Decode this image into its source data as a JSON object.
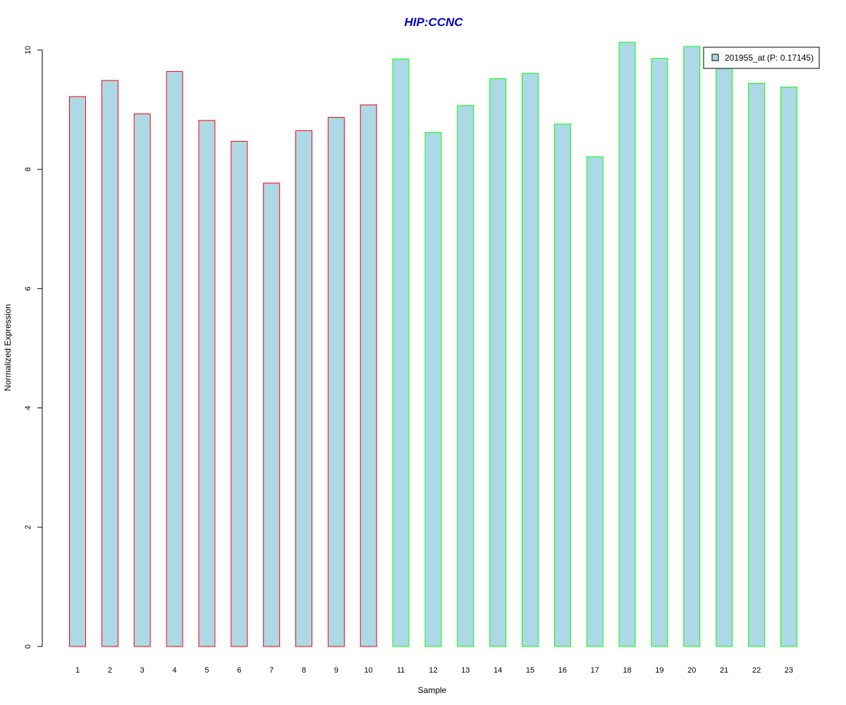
{
  "chart_data": {
    "type": "bar",
    "title": "HIP:CCNC",
    "title_color": "#0000CC",
    "xlabel": "Sample",
    "ylabel": "Normalized Expression",
    "ylim": [
      0,
      10
    ],
    "y_ticks": [
      "0",
      "2",
      "4",
      "6",
      "8",
      "10"
    ],
    "categories": [
      "1",
      "2",
      "3",
      "4",
      "5",
      "6",
      "7",
      "8",
      "9",
      "10",
      "11",
      "12",
      "13",
      "14",
      "15",
      "16",
      "17",
      "18",
      "19",
      "20",
      "21",
      "22",
      "23"
    ],
    "values": [
      9.22,
      9.49,
      8.93,
      9.64,
      8.82,
      8.47,
      7.77,
      8.65,
      8.87,
      9.08,
      9.85,
      8.62,
      9.07,
      9.52,
      9.61,
      8.76,
      8.21,
      10.13,
      9.86,
      10.06,
      9.76,
      9.44,
      9.38
    ],
    "groups": [
      "red",
      "red",
      "red",
      "red",
      "red",
      "red",
      "red",
      "red",
      "red",
      "red",
      "green",
      "green",
      "green",
      "green",
      "green",
      "green",
      "green",
      "green",
      "green",
      "green",
      "green",
      "green",
      "green"
    ],
    "bar_fill": "#ADD8E6",
    "group_colors": {
      "red": "#FF0000",
      "green": "#00FF00"
    },
    "legend": {
      "position": "top-right",
      "entries": [
        {
          "label": "201955_at (P: 0.17145)",
          "color": "#ADD8E6"
        }
      ]
    },
    "grid": false
  }
}
